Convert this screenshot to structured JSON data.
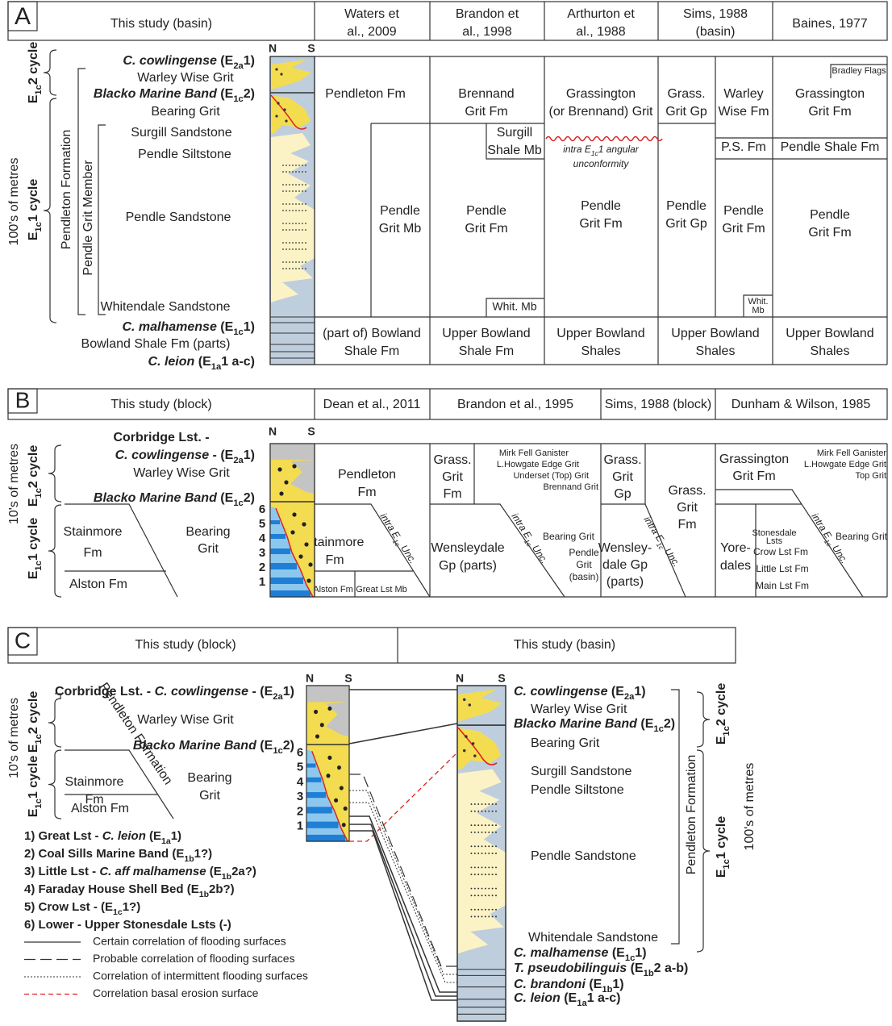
{
  "panel_a": {
    "letter": "A",
    "headers": [
      [
        "This study (basin)"
      ],
      [
        "Waters et",
        "al., 2009"
      ],
      [
        "Brandon et",
        "al., 1998"
      ],
      [
        "Arthurton et",
        "al., 1988"
      ],
      [
        "Sims, 1988",
        "(basin)"
      ],
      [
        "Baines, 1977"
      ]
    ],
    "scale": "100's of metres",
    "cycles": [
      [
        "E",
        "1c",
        "2 cycle"
      ],
      [
        "E",
        "1c",
        "1 cycle"
      ]
    ],
    "formation": "Pendleton Formation",
    "member": "Pendle Grit Member",
    "column": [
      "N",
      "S"
    ],
    "units": [
      [
        "C. cowlingense",
        " (E",
        "2a",
        "1)"
      ],
      "Warley Wise Grit",
      [
        "Blacko Marine Band",
        " (E",
        "1c",
        "2)"
      ],
      "Bearing Grit",
      "Surgill Sandstone",
      "Pendle Siltstone",
      "Pendle Sandstone",
      "Whitendale Sandstone",
      [
        "C. malhamense",
        " (E",
        "1c",
        "1)"
      ],
      "Bowland Shale Fm (parts)",
      [
        "C. leion",
        " (E",
        "1a",
        "1 a-c)"
      ]
    ],
    "columns": [
      [
        [
          "Pendleton Fm"
        ],
        [
          "Pendle",
          "Grit Mb"
        ],
        [
          "(part of) Bowland",
          "Shale Fm"
        ]
      ],
      [
        [
          "Brennand",
          "Grit Fm"
        ],
        [
          "Surgill",
          "Shale Mb"
        ],
        [
          "Pendle",
          "Grit Fm"
        ],
        [
          "Whit. Mb"
        ],
        [
          "Upper Bowland",
          "Shale Fm"
        ]
      ],
      [
        [
          "Grassington",
          "(or Brennand) Grit"
        ],
        [
          [
            "intra E",
            "1c",
            "1 angular"
          ],
          "unconformity"
        ],
        [
          "Pendle",
          "Grit Fm"
        ],
        [
          "Upper Bowland",
          "Shales"
        ]
      ],
      [
        [
          "Grass.",
          "Grit Gp"
        ],
        [
          "Warley",
          "Wise Fm"
        ],
        [
          "P.S. Fm"
        ],
        [
          "Pendle",
          "Grit Gp"
        ],
        [
          "Pendle",
          "Grit Fm"
        ],
        [
          "Whit.",
          "Mb"
        ],
        [
          "Upper Bowland",
          "Shales"
        ]
      ],
      [
        [
          "Bradley Flags"
        ],
        [
          "Grassington",
          "Grit Fm"
        ],
        [
          "Pendle Shale Fm"
        ],
        [
          "Pendle",
          "Grit Fm"
        ],
        [
          "Upper Bowland",
          "Shales"
        ]
      ]
    ]
  },
  "panel_b": {
    "letter": "B",
    "headers": [
      [
        "This study (block)"
      ],
      [
        "Dean et al., 2011"
      ],
      [
        "Brandon et al., 1995"
      ],
      [
        "Sims, 1988 (block)"
      ],
      [
        "Dunham & Wilson, 1985"
      ]
    ],
    "scale": "10's of metres",
    "cycles": [
      [
        "E",
        "1c",
        "2 cycle"
      ],
      [
        "E",
        "1c",
        "1 cycle"
      ]
    ],
    "column": [
      "N",
      "S"
    ],
    "beds": [
      1,
      2,
      3,
      4,
      5,
      6
    ],
    "units": [
      "Corbridge Lst. -",
      [
        "C. cowlingense",
        " - (E",
        "2a",
        "1)"
      ],
      "Warley Wise Grit",
      [
        "Blacko Marine Band",
        " (E",
        "1c",
        "2)"
      ],
      [
        "Stainmore",
        "Fm"
      ],
      [
        "Bearing",
        "Grit"
      ],
      "Alston Fm"
    ],
    "columns": [
      [
        [
          "Pendleton",
          "Fm"
        ],
        [
          "Stainmore",
          "Fm"
        ],
        [
          "Alston Fm"
        ],
        [
          "Great Lst Mb"
        ],
        [
          [
            "intra E",
            "1c",
            " Unc."
          ]
        ]
      ],
      [
        [
          "Grass.",
          "Grit",
          "Fm"
        ],
        [
          "Mirk Fell Ganister",
          "L.Howgate Edge Grit",
          "Underset (Top) Grit",
          "Brennand Grit"
        ],
        [
          "Wensleydale",
          "Gp (parts)"
        ],
        [
          [
            "intra E",
            "1c",
            " Unc."
          ]
        ],
        [
          "Bearing Grit"
        ],
        [
          "Pendle",
          "Grit",
          "(basin)"
        ]
      ],
      [
        [
          "Grass.",
          "Grit",
          "Gp"
        ],
        [
          "Grass.",
          "Grit",
          "Fm"
        ],
        [
          "Wensley-",
          "dale Gp",
          "(parts)"
        ],
        [
          [
            "intra E",
            "1c",
            " Unc."
          ]
        ]
      ],
      [
        [
          "Grassington",
          "Grit Fm"
        ],
        [
          "Mirk Fell Ganister",
          "L.Howgate Edge Grit",
          "Top Grit"
        ],
        [
          "Yore-",
          "dales"
        ],
        [
          "Stonesdale",
          "Lsts"
        ],
        [
          "Crow Lst Fm"
        ],
        [
          "Little Lst Fm"
        ],
        [
          "Main Lst Fm"
        ],
        [
          "Bearing Grit"
        ],
        [
          [
            "intra E",
            "1c",
            " Unc."
          ]
        ]
      ]
    ]
  },
  "panel_c": {
    "letter": "C",
    "headers": [
      "This study (block)",
      "This study (basin)"
    ],
    "block": {
      "scale": "10's of metres",
      "cycles": [
        [
          "E",
          "1c",
          "2 cycle"
        ],
        [
          "E",
          "1c",
          "1 cycle"
        ]
      ],
      "formation": "Pendleton Formation",
      "column": [
        "N",
        "S"
      ],
      "beds": [
        1,
        2,
        3,
        4,
        5,
        6
      ],
      "units": [
        [
          "Corbridge Lst. - ",
          "C. cowlingense",
          " - (E",
          "2a",
          "1)"
        ],
        "Warley Wise Grit",
        [
          "Blacko Marine Band",
          " (E",
          "1c",
          "2)"
        ],
        [
          "Stainmore",
          "Fm"
        ],
        [
          "Bearing",
          "Grit"
        ],
        "Alston Fm"
      ]
    },
    "key": [
      [
        "1) Great Lst - ",
        "C. leion",
        " (E",
        "1a",
        "1)"
      ],
      [
        "2) Coal Sills Marine Band (E",
        "1b",
        "1?)"
      ],
      [
        "3) Little Lst - ",
        "C. aff malhamense",
        " (E",
        "1b",
        "2a?)"
      ],
      [
        "4) Faraday House Shell Bed (E",
        "1b",
        "2b?)"
      ],
      [
        "5) Crow Lst - (E",
        "1c",
        "1?)"
      ],
      "6) Lower - Upper Stonesdale Lsts (-)"
    ],
    "lines": [
      "Certain correlation of flooding surfaces",
      "Probable correlation of flooding surfaces",
      "Correlation of intermittent flooding surfaces",
      "Correlation basal erosion surface"
    ],
    "basin": {
      "column": [
        "N",
        "S"
      ],
      "formation": "Pendleton Formation",
      "cycles": [
        [
          "E",
          "1c",
          "2 cycle"
        ],
        [
          "E",
          "1c",
          "1 cycle"
        ]
      ],
      "scale": "100's of metres",
      "units": [
        [
          "C. cowlingense",
          " (E",
          "2a",
          "1)"
        ],
        "Warley Wise Grit",
        [
          "Blacko Marine Band",
          " (E",
          "1c",
          "2)"
        ],
        "Bearing Grit",
        "Surgill Sandstone",
        "Pendle Siltstone",
        "Pendle Sandstone",
        "Whitendale Sandstone",
        [
          "C. malhamense",
          " (E",
          "1c",
          "1)"
        ],
        [
          "T. pseudobilinguis",
          " (E",
          "1b",
          "2 a-b)"
        ],
        [
          "C. brandoni",
          " (E",
          "1b",
          "1)"
        ],
        [
          "C. leion",
          " (E",
          "1a",
          "1 a-c)"
        ]
      ]
    }
  }
}
